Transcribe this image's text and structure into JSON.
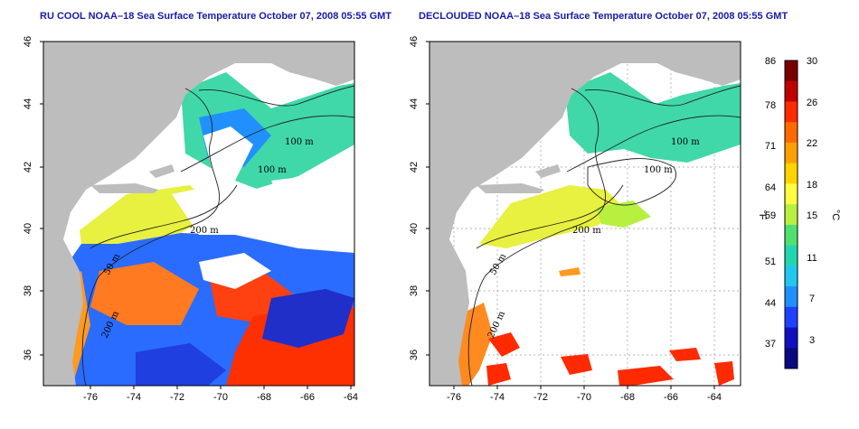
{
  "panels": [
    {
      "title": "RU COOL NOAA–18 Sea Surface Temperature October 07, 2008 05:55 GMT",
      "lon_ticks": [
        "-76",
        "-74",
        "-72",
        "-70",
        "-68",
        "-66",
        "-64"
      ],
      "lat_ticks": [
        "36",
        "38",
        "40",
        "42",
        "44",
        "46"
      ],
      "contour_labels": [
        "100 m",
        "100 m",
        "200 m",
        "50 m",
        "200 m"
      ]
    },
    {
      "title": "DECLOUDED NOAA–18 Sea Surface Temperature October 07, 2008 05:55 GMT",
      "lon_ticks": [
        "-76",
        "-74",
        "-72",
        "-70",
        "-68",
        "-66",
        "-64"
      ],
      "lat_ticks": [
        "36",
        "38",
        "40",
        "42",
        "44",
        "46"
      ],
      "contour_labels": [
        "100 m",
        "100 m",
        "200 m",
        "50 m",
        "200 m"
      ]
    }
  ],
  "colorbar": {
    "fahrenheit_ticks": [
      "86",
      "78",
      "71",
      "64",
      "59",
      "51",
      "44",
      "37"
    ],
    "celsius_ticks": [
      "30",
      "26",
      "22",
      "18",
      "15",
      "11",
      "7",
      "3"
    ],
    "fahrenheit_unit": "°F",
    "celsius_unit": "°C",
    "colors": [
      "#7a0000",
      "#c00000",
      "#ff2a00",
      "#ff6a00",
      "#ffa000",
      "#ffd400",
      "#ffff40",
      "#b8f040",
      "#50e070",
      "#20d8b0",
      "#20c8f0",
      "#2090ff",
      "#2040ff",
      "#1010c0",
      "#0a0a80"
    ]
  },
  "colors": {
    "land": "#bdbdbd",
    "ocean_no_data": "#ffffff",
    "title": "#1a1aa8",
    "grid": "#9a9a9a"
  }
}
